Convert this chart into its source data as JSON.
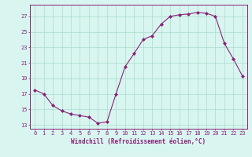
{
  "x": [
    0,
    1,
    2,
    3,
    4,
    5,
    6,
    7,
    8,
    9,
    10,
    11,
    12,
    13,
    14,
    15,
    16,
    17,
    18,
    19,
    20,
    21,
    22,
    23
  ],
  "y": [
    17.5,
    17.0,
    15.5,
    14.8,
    14.4,
    14.2,
    14.0,
    13.2,
    13.4,
    17.0,
    20.5,
    22.2,
    24.0,
    24.5,
    26.0,
    27.0,
    27.2,
    27.3,
    27.5,
    27.4,
    27.0,
    23.5,
    21.5,
    19.3
  ],
  "line_color": "#882277",
  "marker": "D",
  "marker_size": 2,
  "bg_color": "#d8f5f0",
  "grid_color": "#aaddcc",
  "xlabel": "Windchill (Refroidissement éolien,°C)",
  "xlabel_fontsize": 5.5,
  "tick_color": "#882277",
  "tick_fontsize": 5,
  "ylim": [
    12.5,
    28.5
  ],
  "yticks": [
    13,
    15,
    17,
    19,
    21,
    23,
    25,
    27
  ],
  "xlim": [
    -0.5,
    23.5
  ],
  "xticks": [
    0,
    1,
    2,
    3,
    4,
    5,
    6,
    7,
    8,
    9,
    10,
    11,
    12,
    13,
    14,
    15,
    16,
    17,
    18,
    19,
    20,
    21,
    22,
    23
  ]
}
